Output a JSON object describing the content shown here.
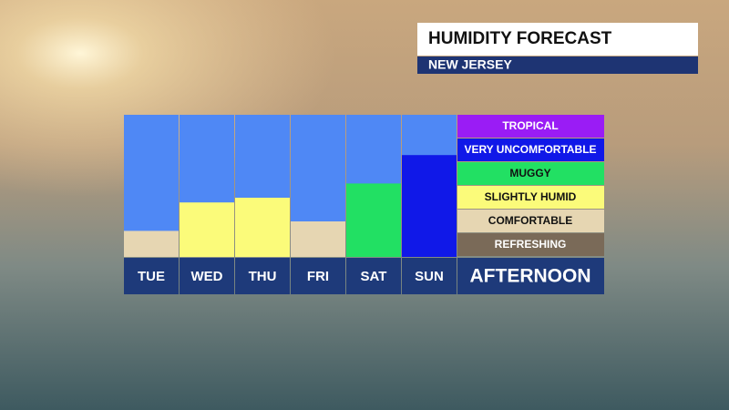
{
  "chart_data": {
    "type": "bar",
    "title": "HUMIDITY FORECAST",
    "subtitle": "NEW JERSEY",
    "x_label": "AFTERNOON",
    "categories": [
      "TUE",
      "WED",
      "THU",
      "FRI",
      "SAT",
      "SUN"
    ],
    "values": [
      1.1,
      2.3,
      2.5,
      1.5,
      3.1,
      4.3
    ],
    "colors": [
      "#e6d6b2",
      "#fbfb7a",
      "#fbfb7a",
      "#e6d6b2",
      "#22e063",
      "#1018e8"
    ],
    "background_color": "#4f88f5",
    "ylim": [
      0,
      6
    ],
    "legend": [
      {
        "name": "TROPICAL",
        "color": "#9a1cf5",
        "text_color": "#ffffff"
      },
      {
        "name": "VERY UNCOMFORTABLE",
        "color": "#1018e8",
        "text_color": "#ffffff"
      },
      {
        "name": "MUGGY",
        "color": "#22e063",
        "text_color": "#111111"
      },
      {
        "name": "SLIGHTLY HUMID",
        "color": "#fbfb7a",
        "text_color": "#111111"
      },
      {
        "name": "COMFORTABLE",
        "color": "#e6d6b2",
        "text_color": "#111111"
      },
      {
        "name": "REFRESHING",
        "color": "#7a6a58",
        "text_color": "#ffffff"
      }
    ]
  }
}
